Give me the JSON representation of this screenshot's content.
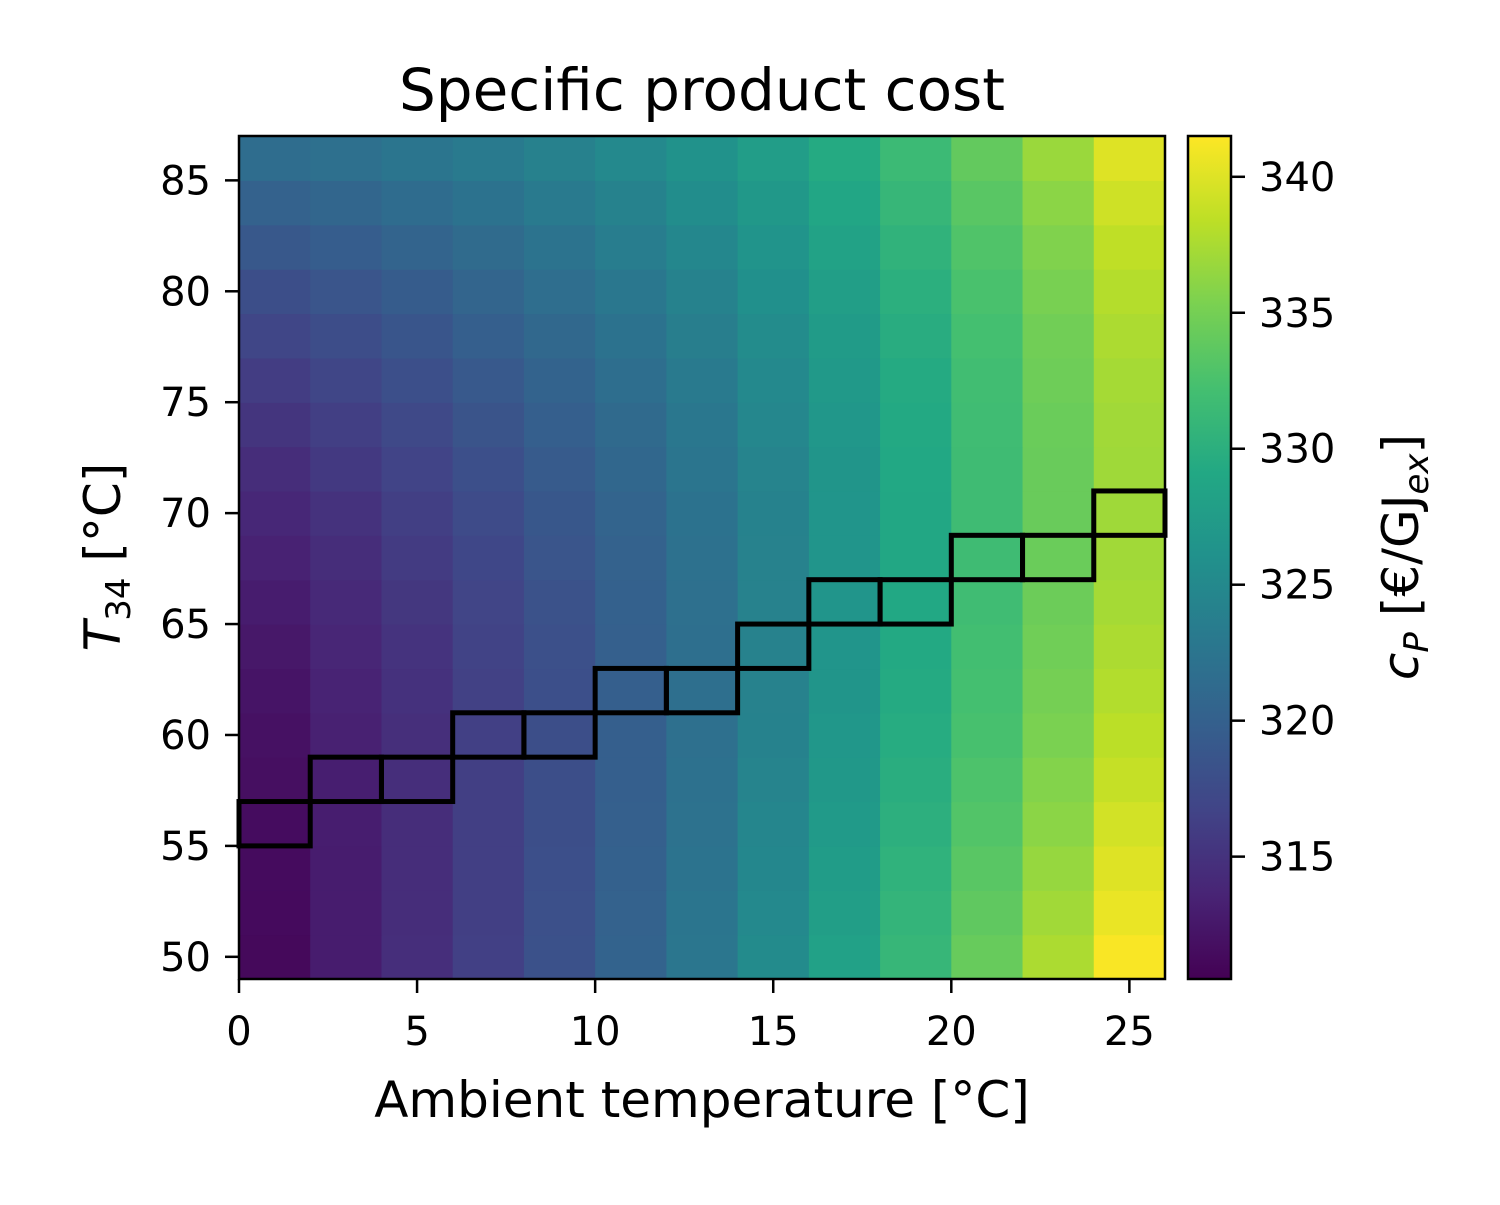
{
  "chart_data": {
    "type": "heatmap",
    "title": "Specific product cost",
    "xlabel": "Ambient temperature [°C]",
    "ylabel": {
      "main": "T",
      "sub": "34",
      "unit": " [°C]"
    },
    "colorbar_label": {
      "main": "c",
      "sub1": "P",
      "mid": " [€/GJ",
      "sub2": "ex",
      "end": "]"
    },
    "x": [
      1,
      3,
      5,
      7,
      9,
      11,
      13,
      15,
      17,
      19,
      21,
      23,
      25
    ],
    "y": [
      50,
      52,
      54,
      56,
      58,
      60,
      62,
      64,
      66,
      68,
      70,
      72,
      74,
      76,
      78,
      80,
      82,
      84,
      86
    ],
    "xlim": [
      0,
      26
    ],
    "ylim": [
      49,
      87
    ],
    "xticks": [
      0,
      5,
      10,
      15,
      20,
      25
    ],
    "yticks": [
      50,
      55,
      60,
      65,
      70,
      75,
      80,
      85
    ],
    "colorbar_ticks": [
      315,
      320,
      325,
      330,
      335,
      340
    ],
    "color_range": [
      310.5,
      341.5
    ],
    "colormap": "viridis",
    "values_order": "rows bottom (y=50) to top (y=86), columns left (x=1) to right (x=25)",
    "values": [
      [
        311.2,
        312.9,
        314.6,
        316.3,
        318.2,
        320.3,
        322.7,
        325.3,
        328.1,
        331.0,
        334.2,
        337.6,
        341.3
      ],
      [
        311.3,
        312.9,
        314.5,
        316.2,
        318.1,
        320.2,
        322.5,
        325.0,
        327.8,
        330.7,
        333.8,
        337.1,
        340.6
      ],
      [
        311.4,
        312.9,
        314.5,
        316.2,
        318.0,
        320.0,
        322.3,
        324.8,
        327.5,
        330.4,
        333.4,
        336.6,
        340.0
      ],
      [
        311.5,
        313.0,
        314.5,
        316.2,
        317.9,
        319.9,
        322.1,
        324.6,
        327.2,
        330.1,
        333.0,
        336.1,
        339.4
      ],
      [
        311.7,
        313.1,
        314.6,
        316.2,
        317.9,
        319.8,
        322.0,
        324.4,
        327.0,
        329.8,
        332.7,
        335.7,
        338.8
      ],
      [
        311.9,
        313.3,
        314.7,
        316.3,
        317.9,
        319.8,
        321.9,
        324.2,
        326.8,
        329.6,
        332.4,
        335.3,
        338.3
      ],
      [
        312.2,
        313.5,
        314.9,
        316.4,
        318.0,
        319.8,
        321.8,
        324.1,
        326.6,
        329.4,
        332.2,
        335.0,
        337.9
      ],
      [
        312.5,
        313.8,
        315.1,
        316.6,
        318.1,
        319.9,
        321.8,
        324.1,
        326.5,
        329.2,
        332.0,
        334.7,
        337.6
      ],
      [
        312.9,
        314.1,
        315.4,
        316.8,
        318.3,
        320.0,
        321.9,
        324.1,
        326.5,
        329.1,
        331.8,
        334.5,
        337.3
      ],
      [
        313.4,
        314.5,
        315.8,
        317.1,
        318.6,
        320.2,
        322.0,
        324.1,
        326.5,
        329.0,
        331.7,
        334.4,
        337.1
      ],
      [
        313.9,
        315.0,
        316.2,
        317.5,
        318.9,
        320.4,
        322.2,
        324.2,
        326.5,
        329.0,
        331.7,
        334.3,
        337.0
      ],
      [
        314.5,
        315.6,
        316.7,
        318.0,
        319.3,
        320.8,
        322.5,
        324.4,
        326.6,
        329.1,
        331.7,
        334.3,
        337.0
      ],
      [
        315.2,
        316.2,
        317.3,
        318.5,
        319.8,
        321.2,
        322.8,
        324.7,
        326.8,
        329.2,
        331.8,
        334.4,
        337.1
      ],
      [
        316.0,
        316.9,
        318.0,
        319.1,
        320.3,
        321.7,
        323.2,
        325.0,
        327.1,
        329.4,
        331.9,
        334.6,
        337.3
      ],
      [
        316.9,
        317.7,
        318.7,
        319.8,
        320.9,
        322.2,
        323.7,
        325.4,
        327.4,
        329.7,
        332.2,
        334.8,
        337.6
      ],
      [
        317.9,
        318.6,
        319.5,
        320.5,
        321.6,
        322.8,
        324.2,
        325.9,
        327.8,
        330.0,
        332.5,
        335.2,
        338.0
      ],
      [
        319.0,
        319.6,
        320.4,
        321.3,
        322.3,
        323.5,
        324.8,
        326.4,
        328.3,
        330.5,
        332.9,
        335.6,
        338.5
      ],
      [
        320.2,
        320.7,
        321.4,
        322.2,
        323.1,
        324.2,
        325.5,
        327.0,
        328.8,
        331.0,
        333.4,
        336.1,
        339.2
      ],
      [
        321.5,
        321.9,
        322.5,
        323.2,
        324.0,
        325.0,
        326.2,
        327.6,
        329.4,
        331.5,
        334.0,
        336.8,
        340.0
      ]
    ],
    "highlighted_cells": [
      {
        "x": 1,
        "y": 56
      },
      {
        "x": 3,
        "y": 58
      },
      {
        "x": 5,
        "y": 58
      },
      {
        "x": 7,
        "y": 60
      },
      {
        "x": 9,
        "y": 60
      },
      {
        "x": 11,
        "y": 62
      },
      {
        "x": 13,
        "y": 62
      },
      {
        "x": 15,
        "y": 64
      },
      {
        "x": 17,
        "y": 66
      },
      {
        "x": 19,
        "y": 66
      },
      {
        "x": 21,
        "y": 68
      },
      {
        "x": 23,
        "y": 68
      },
      {
        "x": 25,
        "y": 70
      }
    ],
    "grid": false,
    "legend": "none"
  }
}
